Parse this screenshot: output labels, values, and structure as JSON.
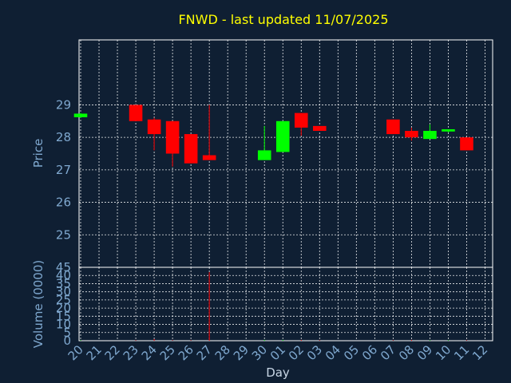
{
  "chart_data": [
    {
      "type": "candlestick",
      "title": "FNWD - last updated 11/07/2025",
      "ylabel": "Price",
      "ylim": [
        24.0,
        31.0
      ],
      "yticks": [
        "25",
        "26",
        "27",
        "28",
        "29"
      ],
      "categories": [
        "20",
        "21",
        "22",
        "23",
        "24",
        "25",
        "26",
        "27",
        "28",
        "29",
        "30",
        "01",
        "02",
        "03",
        "04",
        "05",
        "06",
        "07",
        "08",
        "09",
        "10",
        "11",
        "12"
      ],
      "candles": [
        {
          "x": "20",
          "open": 28.62,
          "close": 28.73,
          "high": 28.75,
          "low": 28.6
        },
        {
          "x": "23",
          "open": 29.0,
          "close": 28.5,
          "high": 29.0,
          "low": 28.5
        },
        {
          "x": "24",
          "open": 28.55,
          "close": 28.1,
          "high": 28.6,
          "low": 27.6
        },
        {
          "x": "25",
          "open": 28.5,
          "close": 27.5,
          "high": 28.5,
          "low": 27.1
        },
        {
          "x": "26",
          "open": 28.1,
          "close": 27.2,
          "high": 28.1,
          "low": 27.2
        },
        {
          "x": "27",
          "open": 27.45,
          "close": 27.3,
          "high": 29.0,
          "low": 27.3
        },
        {
          "x": "30",
          "open": 27.3,
          "close": 27.6,
          "high": 28.35,
          "low": 27.3
        },
        {
          "x": "01",
          "open": 27.55,
          "close": 28.5,
          "high": 28.5,
          "low": 27.55
        },
        {
          "x": "02",
          "open": 28.75,
          "close": 28.3,
          "high": 28.75,
          "low": 28.05
        },
        {
          "x": "03",
          "open": 28.35,
          "close": 28.2,
          "high": 28.35,
          "low": 28.2
        },
        {
          "x": "07",
          "open": 28.55,
          "close": 28.1,
          "high": 28.55,
          "low": 28.1
        },
        {
          "x": "08",
          "open": 28.2,
          "close": 28.0,
          "high": 28.3,
          "low": 27.9
        },
        {
          "x": "09",
          "open": 27.95,
          "close": 28.2,
          "high": 28.4,
          "low": 27.95
        },
        {
          "x": "10",
          "open": 28.18,
          "close": 28.25,
          "high": 28.25,
          "low": 28.15
        },
        {
          "x": "11",
          "open": 28.0,
          "close": 27.6,
          "high": 28.0,
          "low": 27.6
        }
      ],
      "up_color": "#00ff00",
      "down_color": "#ff0000",
      "grid": true
    },
    {
      "type": "bar",
      "ylabel": "Volume (0000)",
      "xlabel": "Day",
      "ylim": [
        0,
        45
      ],
      "yticks": [
        "0",
        "5",
        "10",
        "15",
        "20",
        "25",
        "30",
        "35",
        "40",
        "45"
      ],
      "categories": [
        "20",
        "21",
        "22",
        "23",
        "24",
        "25",
        "26",
        "27",
        "28",
        "29",
        "30",
        "01",
        "02",
        "03",
        "04",
        "05",
        "06",
        "07",
        "08",
        "09",
        "10",
        "11",
        "12"
      ],
      "values": [
        0.3,
        0,
        0,
        0.3,
        1,
        0.3,
        0.3,
        42,
        0,
        0,
        0.5,
        0.5,
        0.5,
        0.3,
        0,
        0,
        0,
        0.3,
        0.5,
        0.3,
        0.3,
        0.3,
        0
      ],
      "colors": [
        "#00ff00",
        "#000000",
        "#000000",
        "#ff0000",
        "#ff0000",
        "#ff0000",
        "#ff0000",
        "#ff0000",
        "#000000",
        "#000000",
        "#00ff00",
        "#00ff00",
        "#ff0000",
        "#ff0000",
        "#000000",
        "#000000",
        "#000000",
        "#ff0000",
        "#ff0000",
        "#00ff00",
        "#00ff00",
        "#ff0000",
        "#000000"
      ],
      "grid": true
    }
  ],
  "colors": {
    "background": "#0f1f33",
    "grid": "#ffffff",
    "axis_text": "#7fa8cf",
    "title": "#ffff00"
  }
}
